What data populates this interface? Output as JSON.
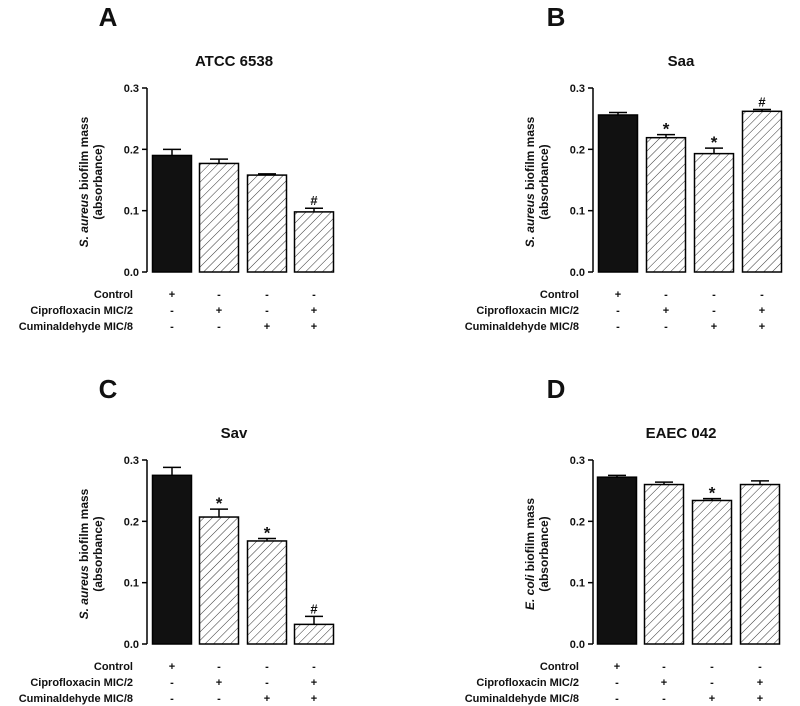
{
  "chart_data": [
    {
      "type": "bar",
      "panel_letter": "A",
      "title": "ATCC 6538",
      "ylabel": [
        {
          "text": "S. aureus",
          "italic": true
        },
        {
          "text": " biofilm mass",
          "italic": false
        }
      ],
      "ylabel2": "(absorbance)",
      "ylim": [
        0,
        0.3
      ],
      "yticks": [
        "0.0",
        "0.1",
        "0.2",
        "0.3"
      ],
      "categories": [
        "1",
        "2",
        "3",
        "4"
      ],
      "values": [
        0.19,
        0.177,
        0.158,
        0.098
      ],
      "errors": [
        0.01,
        0.007,
        0.002,
        0.006
      ],
      "fills": [
        "solid",
        "hatch",
        "hatch",
        "hatch"
      ],
      "annotations": [
        "",
        "",
        "",
        "#"
      ],
      "condition_rows": [
        {
          "label": "Control",
          "signs": [
            "+",
            "-",
            "-",
            "-"
          ]
        },
        {
          "label": "Ciprofloxacin MIC/2",
          "signs": [
            "-",
            "+",
            "-",
            "+"
          ]
        },
        {
          "label": "Cuminaldehyde MIC/8",
          "signs": [
            "-",
            "-",
            "+",
            "+"
          ]
        }
      ]
    },
    {
      "type": "bar",
      "panel_letter": "B",
      "title": "Saa",
      "ylabel": [
        {
          "text": "S. aureus",
          "italic": true
        },
        {
          "text": " biofilm mass",
          "italic": false
        }
      ],
      "ylabel2": "(absorbance)",
      "ylim": [
        0,
        0.3
      ],
      "yticks": [
        "0.0",
        "0.1",
        "0.2",
        "0.3"
      ],
      "categories": [
        "1",
        "2",
        "3",
        "4"
      ],
      "values": [
        0.256,
        0.219,
        0.193,
        0.262
      ],
      "errors": [
        0.004,
        0.005,
        0.009,
        0.003
      ],
      "fills": [
        "solid",
        "hatch",
        "hatch",
        "hatch"
      ],
      "annotations": [
        "",
        "*",
        "*",
        "#"
      ],
      "condition_rows": [
        {
          "label": "Control",
          "signs": [
            "+",
            "-",
            "-",
            "-"
          ]
        },
        {
          "label": "Ciprofloxacin MIC/2",
          "signs": [
            "-",
            "+",
            "-",
            "+"
          ]
        },
        {
          "label": "Cuminaldehyde MIC/8",
          "signs": [
            "-",
            "-",
            "+",
            "+"
          ]
        }
      ]
    },
    {
      "type": "bar",
      "panel_letter": "C",
      "title": "Sav",
      "ylabel": [
        {
          "text": "S. aureus",
          "italic": true
        },
        {
          "text": " biofilm mass",
          "italic": false
        }
      ],
      "ylabel2": "(absorbance)",
      "ylim": [
        0,
        0.3
      ],
      "yticks": [
        "0.0",
        "0.1",
        "0.2",
        "0.3"
      ],
      "categories": [
        "1",
        "2",
        "3",
        "4"
      ],
      "values": [
        0.275,
        0.207,
        0.168,
        0.032
      ],
      "errors": [
        0.013,
        0.013,
        0.004,
        0.013
      ],
      "fills": [
        "solid",
        "hatch",
        "hatch",
        "hatch"
      ],
      "annotations": [
        "",
        "*",
        "*",
        "#"
      ],
      "condition_rows": [
        {
          "label": "Control",
          "signs": [
            "+",
            "-",
            "-",
            "-"
          ]
        },
        {
          "label": "Ciprofloxacin MIC/2",
          "signs": [
            "-",
            "+",
            "-",
            "+"
          ]
        },
        {
          "label": "Cuminaldehyde MIC/8",
          "signs": [
            "-",
            "-",
            "+",
            "+"
          ]
        }
      ]
    },
    {
      "type": "bar",
      "panel_letter": "D",
      "title": "EAEC 042",
      "ylabel": [
        {
          "text": "E. coli",
          "italic": true
        },
        {
          "text": " biofilm mass",
          "italic": false
        }
      ],
      "ylabel2": "(absorbance)",
      "ylim": [
        0,
        0.3
      ],
      "yticks": [
        "0.0",
        "0.1",
        "0.2",
        "0.3"
      ],
      "categories": [
        "1",
        "2",
        "3",
        "4"
      ],
      "values": [
        0.272,
        0.26,
        0.234,
        0.26
      ],
      "errors": [
        0.003,
        0.004,
        0.003,
        0.006
      ],
      "fills": [
        "solid",
        "hatch",
        "hatch",
        "hatch"
      ],
      "annotations": [
        "",
        "",
        "*",
        ""
      ],
      "condition_rows": [
        {
          "label": "Control",
          "signs": [
            "+",
            "-",
            "-",
            "-"
          ]
        },
        {
          "label": "Ciprofloxacin MIC/2",
          "signs": [
            "-",
            "+",
            "-",
            "+"
          ]
        },
        {
          "label": "Cuminaldehyde MIC/8",
          "signs": [
            "-",
            "-",
            "+",
            "+"
          ]
        }
      ]
    }
  ]
}
